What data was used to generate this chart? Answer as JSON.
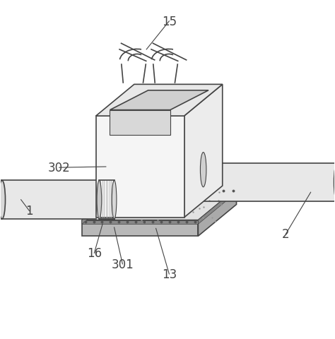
{
  "bg_color": "#ffffff",
  "line_color": "#444444",
  "fill_box_front": "#f5f5f5",
  "fill_box_right": "#ececec",
  "fill_box_top": "#e8e8e8",
  "fill_inner": "#d0d0d0",
  "fill_pipe": "#e8e8e8",
  "fill_pipe_end": "#d8d8d8",
  "fill_base_top": "#e0e0e0",
  "fill_base_body": "#c8c8c8",
  "fill_coupling": "#cccccc",
  "label_fontsize": 12,
  "labels": [
    "15",
    "302",
    "1",
    "2",
    "16",
    "301",
    "13"
  ]
}
